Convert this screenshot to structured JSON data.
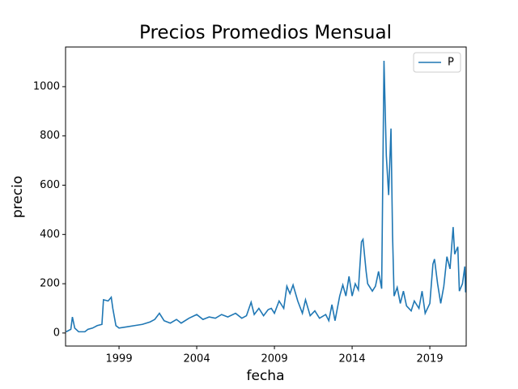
{
  "chart_data": {
    "type": "line",
    "title": "Precios Promedios Mensual",
    "xlabel": "fecha",
    "ylabel": "precio",
    "x": [
      1995.6,
      1995.9,
      1996.0,
      1996.15,
      1996.4,
      1996.8,
      1997.0,
      1997.3,
      1997.6,
      1997.9,
      1998.0,
      1998.3,
      1998.5,
      1998.6,
      1998.8,
      1999.0,
      1999.5,
      2000.0,
      2000.5,
      2001.0,
      2001.3,
      2001.6,
      2001.9,
      2002.3,
      2002.7,
      2003.0,
      2003.5,
      2004.0,
      2004.4,
      2004.8,
      2005.2,
      2005.6,
      2006.0,
      2006.5,
      2006.9,
      2007.2,
      2007.5,
      2007.7,
      2008.0,
      2008.3,
      2008.6,
      2008.8,
      2009.0,
      2009.3,
      2009.6,
      2009.8,
      2010.0,
      2010.2,
      2010.5,
      2010.8,
      2011.0,
      2011.3,
      2011.6,
      2011.9,
      2012.3,
      2012.5,
      2012.7,
      2012.9,
      2013.2,
      2013.4,
      2013.6,
      2013.8,
      2014.0,
      2014.2,
      2014.4,
      2014.6,
      2014.7,
      2014.9,
      2015.0,
      2015.3,
      2015.5,
      2015.7,
      2015.9,
      2016.05,
      2016.2,
      2016.35,
      2016.5,
      2016.6,
      2016.7,
      2016.9,
      2017.1,
      2017.3,
      2017.5,
      2017.8,
      2018.0,
      2018.3,
      2018.5,
      2018.7,
      2019.0,
      2019.2,
      2019.3,
      2019.5,
      2019.7,
      2019.9,
      2020.1,
      2020.3,
      2020.5,
      2020.6,
      2020.8,
      2020.9,
      2021.1,
      2021.25,
      2021.3
    ],
    "series": [
      {
        "name": "P",
        "color": "#1f77b4",
        "values": [
          5,
          15,
          65,
          20,
          5,
          5,
          15,
          20,
          30,
          35,
          135,
          130,
          145,
          100,
          30,
          20,
          25,
          30,
          35,
          45,
          55,
          80,
          50,
          40,
          55,
          40,
          60,
          75,
          55,
          65,
          60,
          75,
          65,
          80,
          60,
          70,
          125,
          75,
          100,
          70,
          95,
          100,
          80,
          130,
          100,
          190,
          160,
          195,
          130,
          80,
          135,
          70,
          90,
          60,
          75,
          50,
          115,
          50,
          150,
          195,
          150,
          230,
          150,
          200,
          175,
          370,
          380,
          250,
          200,
          170,
          190,
          250,
          180,
          1105,
          720,
          560,
          830,
          400,
          150,
          185,
          120,
          170,
          110,
          90,
          130,
          100,
          170,
          80,
          120,
          280,
          300,
          200,
          120,
          190,
          310,
          260,
          430,
          320,
          350,
          170,
          200,
          270,
          165
        ]
      }
    ],
    "xlim": [
      1995.56,
      2021.34
    ],
    "xticks": [
      1999,
      2004,
      2009,
      2014,
      2019
    ],
    "ylim": [
      -53,
      1161
    ],
    "yticks": [
      0,
      200,
      400,
      600,
      800,
      1000
    ],
    "legend": "upper right"
  }
}
